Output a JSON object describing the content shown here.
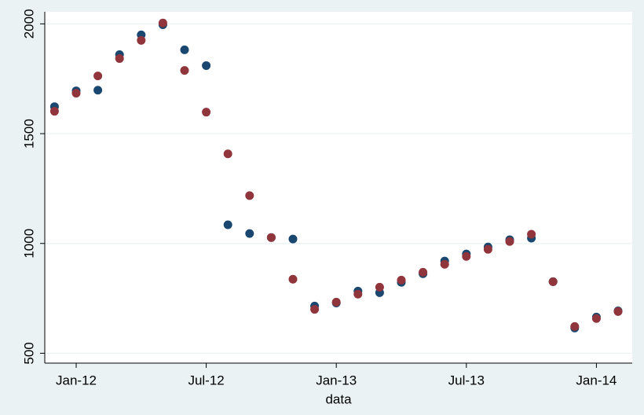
{
  "chart_data": {
    "type": "scatter",
    "x_label": "data",
    "x": [
      "2011-12",
      "2012-01",
      "2012-02",
      "2012-03",
      "2012-04",
      "2012-05",
      "2012-06",
      "2012-07",
      "2012-08",
      "2012-09",
      "2012-10",
      "2012-11",
      "2012-12",
      "2013-01",
      "2013-02",
      "2013-03",
      "2013-04",
      "2013-05",
      "2013-06",
      "2013-07",
      "2013-08",
      "2013-09",
      "2013-10",
      "2013-11",
      "2013-12",
      "2014-01",
      "2014-02"
    ],
    "series": [
      {
        "color": "#1a476f",
        "values": [
          1623,
          1695,
          1698,
          1860,
          1950,
          1996,
          1882,
          1810,
          1085,
          1045,
          1027,
          1020,
          715,
          729,
          783,
          776,
          823,
          862,
          920,
          952,
          984,
          1017,
          1024,
          826,
          615,
          665,
          693
        ]
      },
      {
        "color": "#90353b",
        "values": [
          1602,
          1684,
          1763,
          1842,
          1925,
          2004,
          1788,
          1598,
          1408,
          1218,
          1027,
          837,
          700,
          733,
          769,
          801,
          833,
          869,
          905,
          941,
          973,
          1009,
          1042,
          826,
          622,
          658,
          690
        ]
      }
    ],
    "xlim": [
      "2011-11",
      "2014-03"
    ],
    "xticks": [
      {
        "value": "2012-01",
        "label": "Jan-12"
      },
      {
        "value": "2012-07",
        "label": "Jul-12"
      },
      {
        "value": "2013-01",
        "label": "Jan-13"
      },
      {
        "value": "2013-07",
        "label": "Jul-13"
      },
      {
        "value": "2014-01",
        "label": "Jan-14"
      }
    ],
    "ylim": [
      455,
      2055
    ],
    "yticks": [
      500,
      1000,
      1500,
      2000
    ],
    "grid": true
  }
}
